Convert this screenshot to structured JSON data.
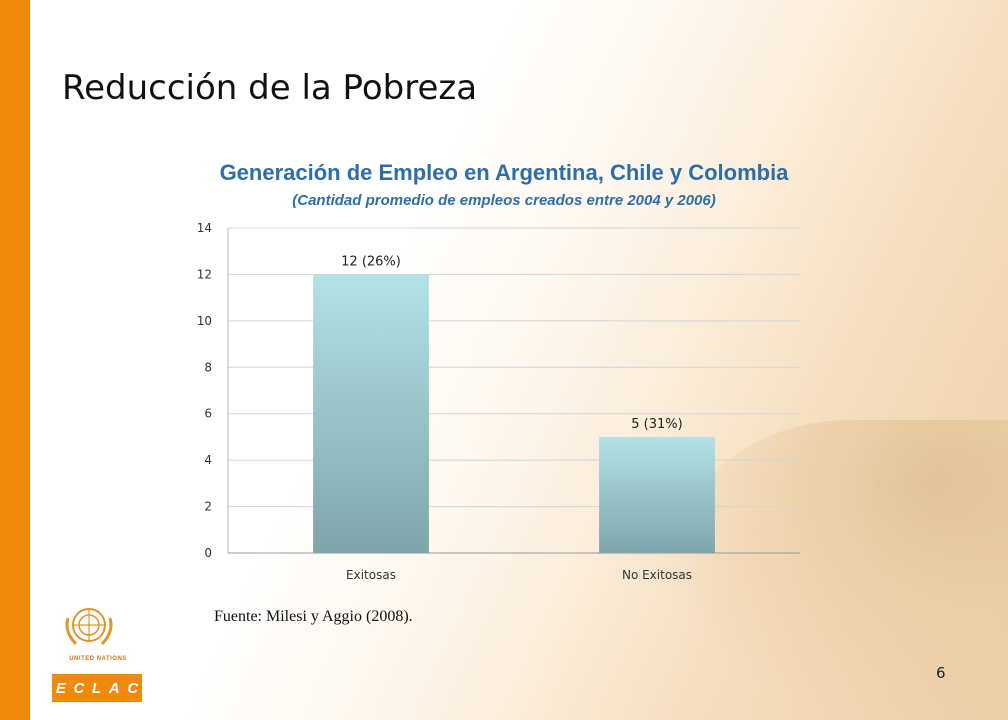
{
  "slide": {
    "title": "Reducción de la Pobreza",
    "source": "Fuente: Milesi y Aggio (2008).",
    "page_number": "6",
    "logo_text": "UNITED NATIONS",
    "logo_letters": [
      "E",
      "C",
      "L",
      "A",
      "C"
    ],
    "colors": {
      "accent_bar": "#ef8a0c",
      "chart_title": "#2d6ea8",
      "bar_top": "#b2e2e6",
      "bar_bottom": "#7ea6aa"
    }
  },
  "chart_data": {
    "type": "bar",
    "title": "Generación de Empleo en Argentina, Chile y Colombia",
    "subtitle": "(Cantidad promedio de empleos creados entre 2004 y 2006)",
    "categories": [
      "Exitosas",
      "No Exitosas"
    ],
    "values": [
      12,
      5
    ],
    "data_labels": [
      "12 (26%)",
      "5 (31%)"
    ],
    "xlabel": "",
    "ylabel": "",
    "ylim": [
      0,
      14
    ],
    "yticks": [
      0,
      2,
      4,
      6,
      8,
      10,
      12,
      14
    ],
    "grid": true,
    "legend": "none"
  }
}
